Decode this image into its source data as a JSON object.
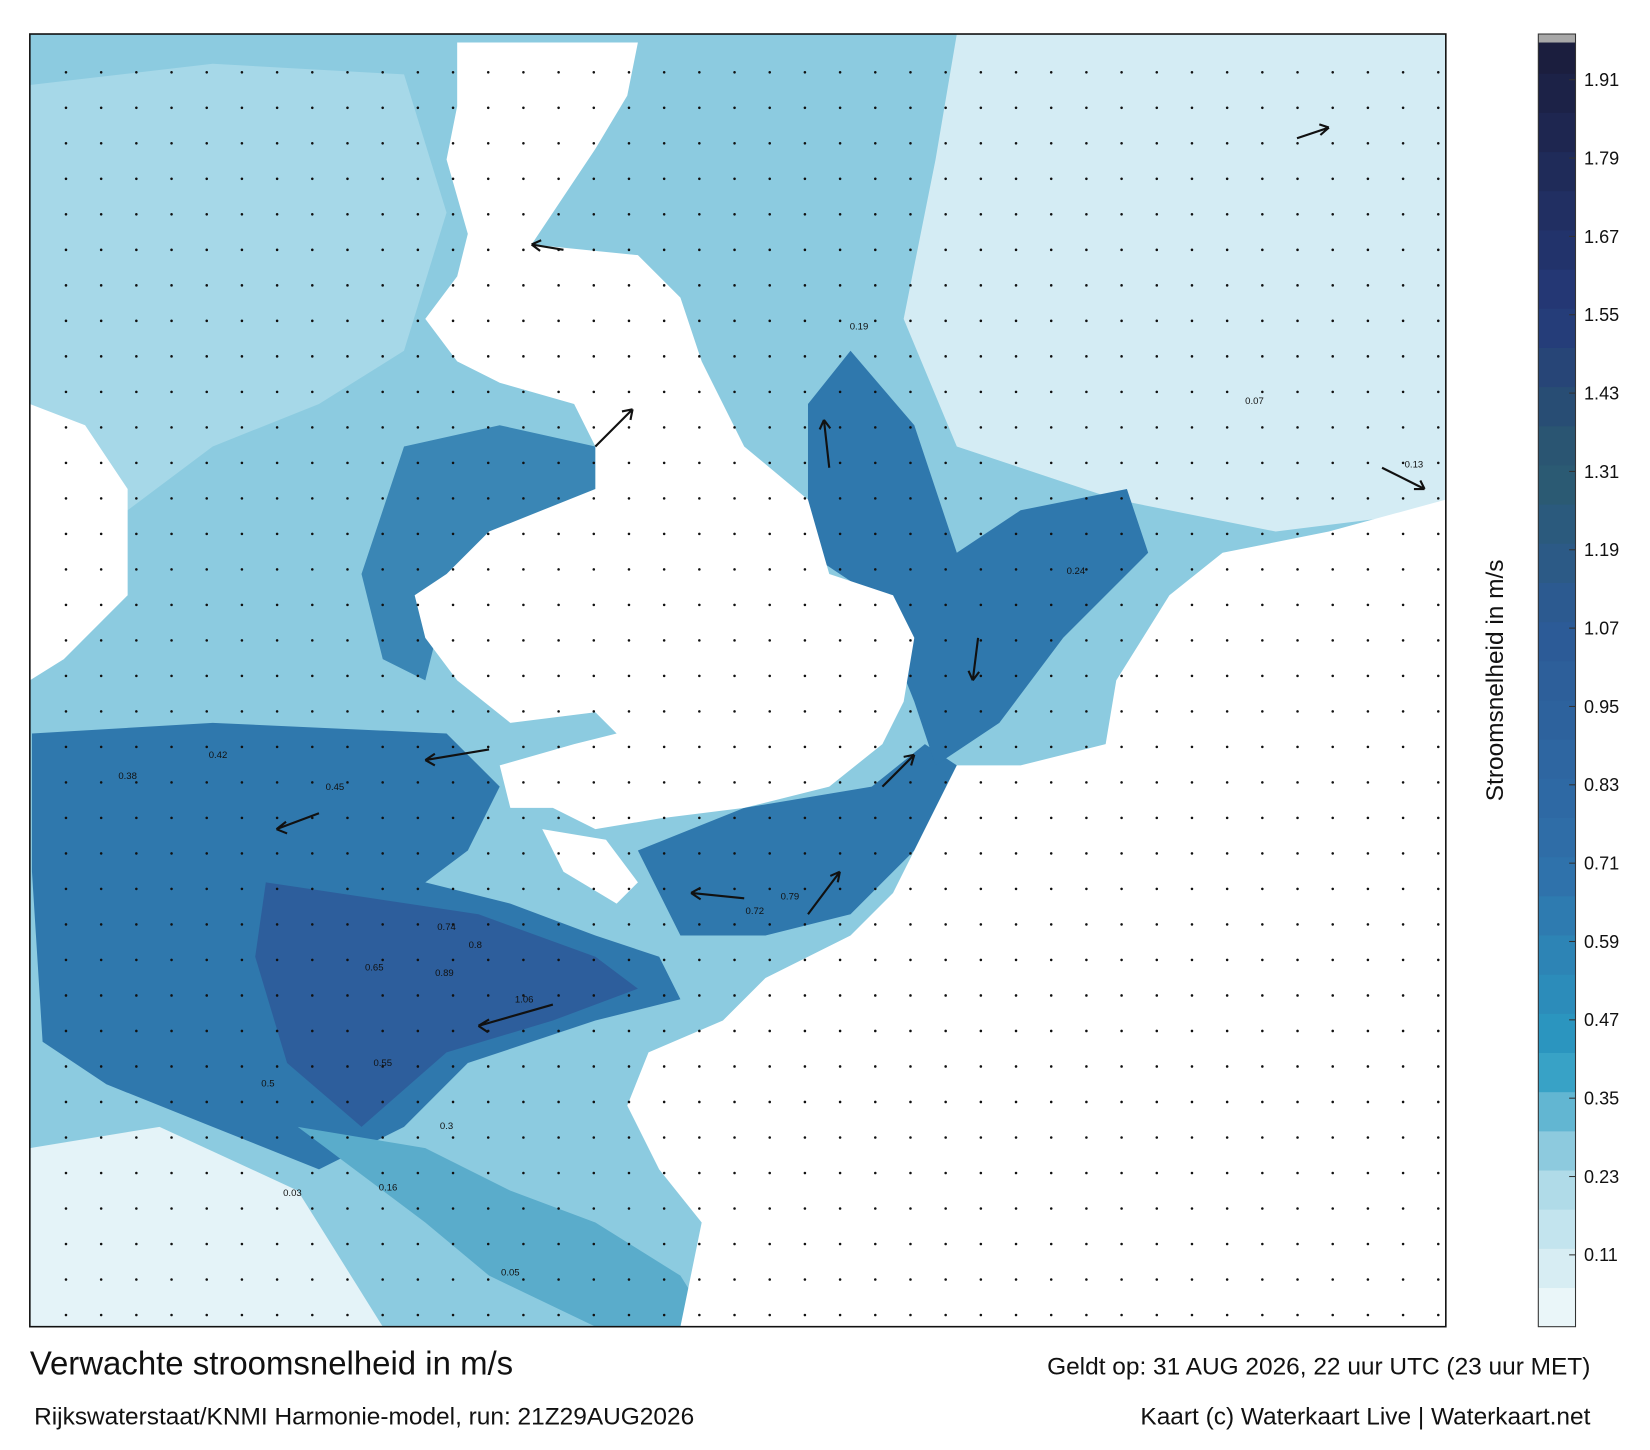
{
  "title": "Verwachte stroomsnelheid in m/s",
  "valid_time": "Geldt op: 31 AUG 2026, 22 uur UTC (23 uur MET)",
  "model": "Rijkswaterstaat/KNMI Harmonie-model, run: 21Z29AUG2026",
  "credit": "Kaart (c) Waterkaart Live | Waterkaart.net",
  "colorbar": {
    "label": "Stroomsnelheid in m/s",
    "lim": [
      0,
      1.98
    ],
    "ticks": [
      0.11,
      0.23,
      0.35,
      0.47,
      0.59,
      0.71,
      0.83,
      0.95,
      1.07,
      1.19,
      1.31,
      1.43,
      1.55,
      1.67,
      1.79,
      1.91
    ],
    "stops": [
      {
        "value": 0,
        "color": "#f4fafc"
      },
      {
        "value": 0.23,
        "color": "#a9d8e6"
      },
      {
        "value": 0.41,
        "color": "#2a9bc2"
      },
      {
        "value": 0.71,
        "color": "#2f6fa9"
      },
      {
        "value": 1.07,
        "color": "#2c5a96"
      },
      {
        "value": 1.31,
        "color": "#2b5a70"
      },
      {
        "value": 1.55,
        "color": "#253a7a"
      },
      {
        "value": 1.98,
        "color": "#1a1c3a"
      }
    ]
  },
  "map_labels": [
    "0.74",
    "0.8",
    "1.06",
    "0.65",
    "0.42",
    "0.89",
    "0.55",
    "0.3",
    "0.16",
    "0.05",
    "0.38",
    "0.45",
    "0.79",
    "0.72",
    "0.24",
    "0.13",
    "0.19",
    "0.07",
    "0.5",
    "0.03"
  ]
}
